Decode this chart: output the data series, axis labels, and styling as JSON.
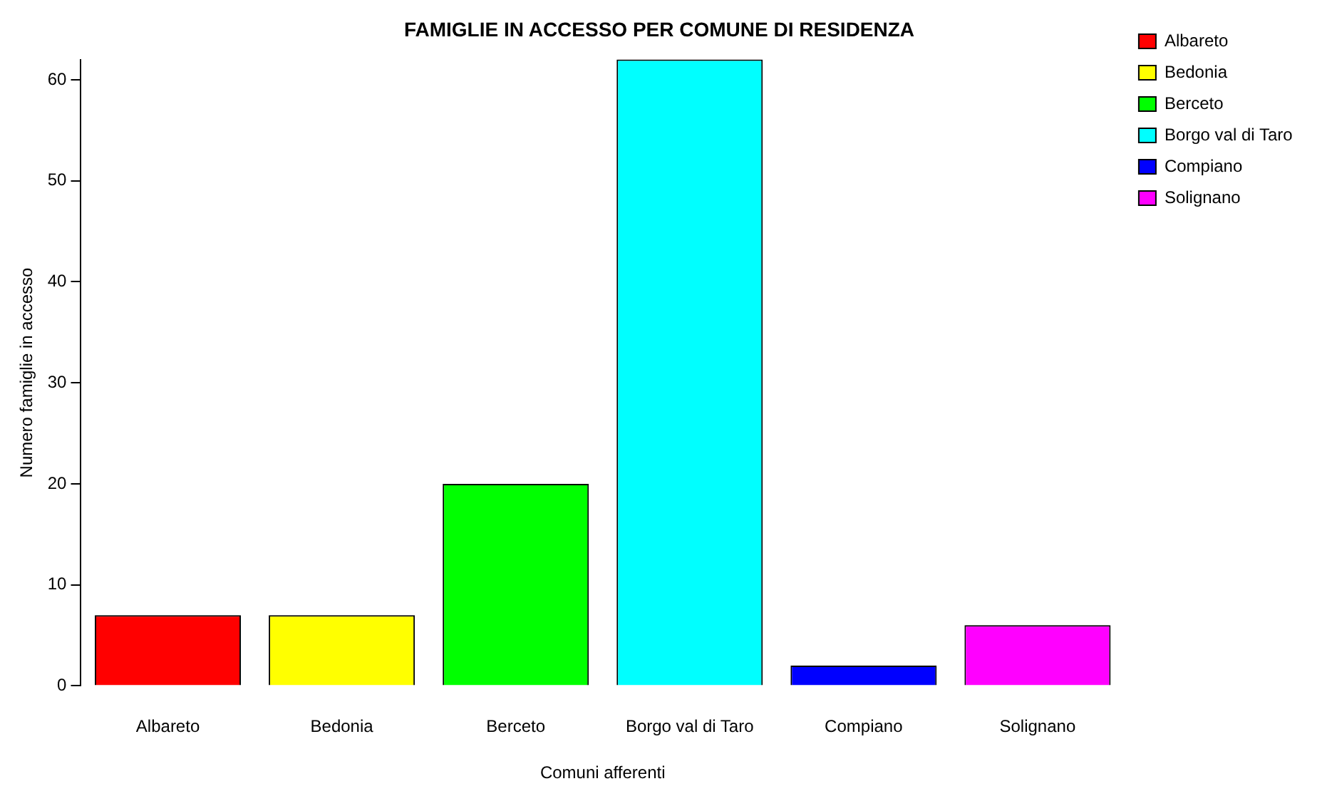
{
  "chart_data": {
    "type": "bar",
    "title": "FAMIGLIE IN ACCESSO PER COMUNE DI RESIDENZA",
    "xlabel": "Comuni afferenti",
    "ylabel": "Numero famiglie in accesso",
    "categories": [
      "Albareto",
      "Bedonia",
      "Berceto",
      "Borgo val di Taro",
      "Compiano",
      "Solignano"
    ],
    "series": [
      {
        "name": "Albareto",
        "color": "#ff0000",
        "values": [
          7,
          null,
          null,
          null,
          null,
          null
        ]
      },
      {
        "name": "Bedonia",
        "color": "#ffff00",
        "values": [
          null,
          7,
          null,
          null,
          null,
          null
        ]
      },
      {
        "name": "Berceto",
        "color": "#00ff00",
        "values": [
          null,
          null,
          20,
          null,
          null,
          null
        ]
      },
      {
        "name": "Borgo val di Taro",
        "color": "#00ffff",
        "values": [
          null,
          null,
          null,
          62,
          null,
          null
        ]
      },
      {
        "name": "Compiano",
        "color": "#0000ff",
        "values": [
          null,
          null,
          null,
          null,
          2,
          null
        ]
      },
      {
        "name": "Solignano",
        "color": "#ff00ff",
        "values": [
          null,
          null,
          null,
          null,
          null,
          6
        ]
      }
    ],
    "ylim": [
      0,
      62
    ],
    "yticks": [
      0,
      10,
      20,
      30,
      40,
      50,
      60
    ],
    "grid": false,
    "legend": "top right"
  }
}
